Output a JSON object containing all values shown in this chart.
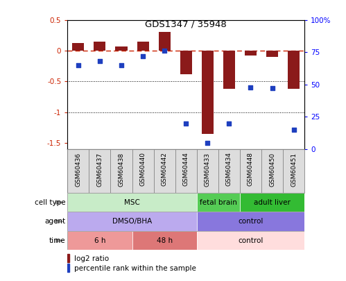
{
  "title": "GDS1347 / 35948",
  "samples": [
    "GSM60436",
    "GSM60437",
    "GSM60438",
    "GSM60440",
    "GSM60442",
    "GSM60444",
    "GSM60433",
    "GSM60434",
    "GSM60448",
    "GSM60450",
    "GSM60451"
  ],
  "log2_ratio": [
    0.12,
    0.15,
    0.07,
    0.15,
    0.3,
    -0.38,
    -1.35,
    -0.62,
    -0.08,
    -0.1,
    -0.62
  ],
  "percentile_rank": [
    65,
    68,
    65,
    72,
    76,
    20,
    5,
    20,
    48,
    47,
    15
  ],
  "bar_color": "#8B1A1A",
  "dot_color": "#1E3FBF",
  "dashed_line_color": "#CC2200",
  "ylim_left": [
    -1.6,
    0.5
  ],
  "ylim_right": [
    0,
    100
  ],
  "yticks_left": [
    0.5,
    0.0,
    -0.5,
    -1.0,
    -1.5
  ],
  "ytick_labels_left": [
    "0.5",
    "0",
    "-0.5",
    "-1",
    "-1.5"
  ],
  "yticks_right": [
    100,
    75,
    50,
    25,
    0
  ],
  "ytick_labels_right": [
    "100%",
    "75",
    "50",
    "25",
    "0"
  ],
  "cell_type_groups": [
    {
      "label": "MSC",
      "start": 0,
      "end": 6,
      "color": "#C8ECC8"
    },
    {
      "label": "fetal brain",
      "start": 6,
      "end": 8,
      "color": "#55CC55"
    },
    {
      "label": "adult liver",
      "start": 8,
      "end": 11,
      "color": "#33BB33"
    }
  ],
  "agent_groups": [
    {
      "label": "DMSO/BHA",
      "start": 0,
      "end": 6,
      "color": "#BBAAEE"
    },
    {
      "label": "control",
      "start": 6,
      "end": 11,
      "color": "#8877DD"
    }
  ],
  "time_groups": [
    {
      "label": "6 h",
      "start": 0,
      "end": 3,
      "color": "#EE9999"
    },
    {
      "label": "48 h",
      "start": 3,
      "end": 6,
      "color": "#DD7777"
    },
    {
      "label": "control",
      "start": 6,
      "end": 11,
      "color": "#FFDDDD"
    }
  ],
  "row_labels": [
    "cell type",
    "agent",
    "time"
  ],
  "legend_items": [
    {
      "color": "#8B1A1A",
      "label": "log2 ratio"
    },
    {
      "color": "#1E3FBF",
      "label": "percentile rank within the sample"
    }
  ],
  "background_color": "#FFFFFF",
  "plot_bg": "#FFFFFF",
  "sample_bg": "#DDDDDD",
  "border_color": "#888888"
}
